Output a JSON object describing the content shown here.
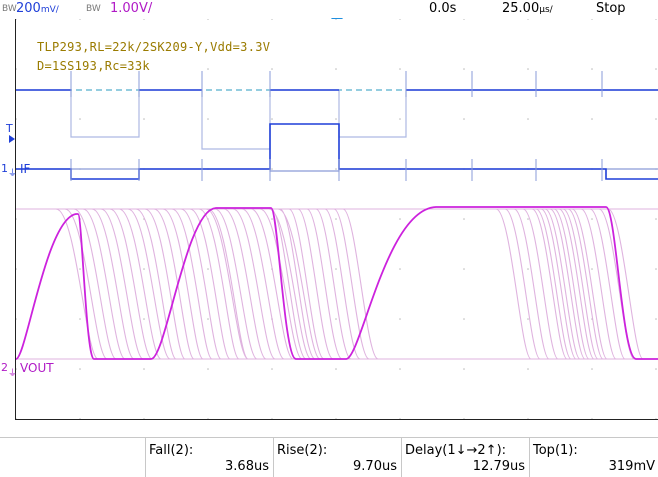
{
  "topbar": {
    "ch1_bw": "BW",
    "ch1_scale": "200",
    "ch1_unit": "mV/",
    "ch2_bw": "BW",
    "ch2_scale": "1.00V/",
    "time_position": "0.0s",
    "time_scale": "25.00",
    "time_unit": "µs/",
    "run_state": "Stop"
  },
  "annotation": {
    "line1": "TLP293,RL=22k/2SK209-Y,Vdd=3.3V",
    "line2": "D=1SS193,Rc=33k"
  },
  "markers": {
    "trigger_label": "T",
    "ch1_number": "1",
    "ch1_label": "IF",
    "ch2_number": "2",
    "ch2_label": "VOUT"
  },
  "measurements": [
    {
      "label": "Fall(2):",
      "value": "3.68us"
    },
    {
      "label": "Rise(2):",
      "value": "9.70us"
    },
    {
      "label": "Delay(1↓→2↑):",
      "value": "12.79us"
    },
    {
      "label": "Top(1):",
      "value": "319mV"
    }
  ],
  "colors": {
    "ch1": "#1f3fd8",
    "ch1_persistence": "#8a9bd8",
    "ch2": "#cc22dd",
    "ch2_persistence": "#d9a6d9",
    "annotation": "#9a7b00",
    "trigger_marker": "#1e8fe0"
  }
}
